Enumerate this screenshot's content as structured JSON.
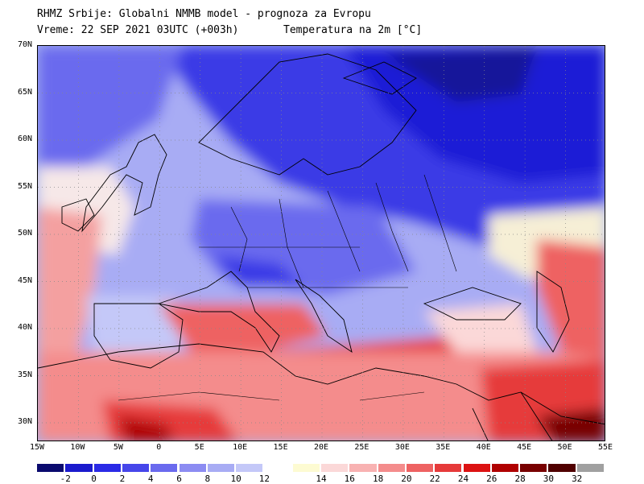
{
  "header": {
    "line1": "RHMZ Srbije: Globalni NMMB model - prognoza za Evropu",
    "line2_time": "Vreme: 22 SEP 2021 03UTC (+003h)",
    "line2_var": "Temperatura na 2m [°C]"
  },
  "lat_labels": [
    "70N",
    "65N",
    "60N",
    "55N",
    "50N",
    "45N",
    "40N",
    "35N",
    "30N"
  ],
  "lon_labels": [
    "15W",
    "10W",
    "5W",
    "0",
    "5E",
    "10E",
    "15E",
    "20E",
    "25E",
    "30E",
    "35E",
    "40E",
    "45E",
    "50E",
    "55E"
  ],
  "legend": {
    "labels": [
      "-2",
      "0",
      "2",
      "4",
      "6",
      "8",
      "10",
      "12",
      "14",
      "16",
      "18",
      "20",
      "22",
      "24",
      "26",
      "28",
      "30",
      "32"
    ],
    "colors": [
      "#0a0a6e",
      "#1a1acd",
      "#2a2ae6",
      "#4646ea",
      "#6a6aee",
      "#8c8cf2",
      "#a8acf4",
      "#c4c8f8",
      "#ffffff",
      "#fdfbd2",
      "#fbd8d8",
      "#f8b2b2",
      "#f48c8c",
      "#ee6262",
      "#e63a3a",
      "#dc1212",
      "#b00000",
      "#780000",
      "#500000",
      "#a0a0a0"
    ]
  }
}
